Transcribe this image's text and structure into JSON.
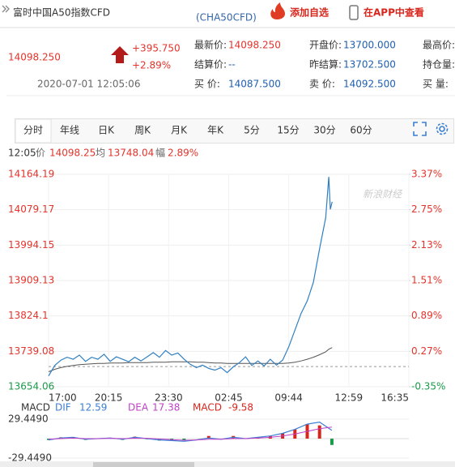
{
  "header": {
    "title": "富时中国A50指数CFD",
    "code": "(CHA50CFD)",
    "add_watch": "添加自选",
    "open_app": "在APP中查看"
  },
  "quote": {
    "price": "14098.250",
    "change": "+395.750",
    "change_pct": "+2.89%",
    "time": "2020-07-01 12:05:06",
    "fields": [
      {
        "label": "最新价:",
        "value": "14098.250",
        "color": "#e4342c"
      },
      {
        "label": "开盘价:",
        "value": "13700.000"
      },
      {
        "label": "最高价:"
      },
      {
        "label": "结算价:",
        "value": "--"
      },
      {
        "label": "昨结算:",
        "value": "13702.500"
      },
      {
        "label": "持仓量:"
      },
      {
        "label": "买 价:",
        "value": "14087.500"
      },
      {
        "label": "卖 价:",
        "value": "14092.500"
      },
      {
        "label": "买 量:"
      }
    ]
  },
  "tabs": {
    "items": [
      "分时",
      "年线",
      "日K",
      "周K",
      "月K",
      "年K",
      "5分",
      "15分",
      "30分",
      "60分"
    ],
    "selected": 0
  },
  "info": {
    "time": "12:05",
    "range_label": "幅",
    "range": "2.89%"
  },
  "watermark": "新浪财经",
  "chart_data": [
    {
      "type": "line",
      "up_color": "#e4342c",
      "down_color": "#1a9a4a",
      "reference": 13702.5,
      "x": [
        0,
        20,
        40,
        60,
        80,
        100,
        120,
        140,
        160,
        180,
        200,
        220,
        240,
        260,
        280,
        300,
        320,
        340,
        360,
        380,
        400,
        420,
        440,
        460,
        480,
        500,
        520,
        540,
        560,
        580,
        600,
        620,
        640,
        660,
        680,
        700,
        720,
        740,
        760,
        780,
        800,
        820,
        840,
        860,
        880,
        900,
        910,
        915,
        921
      ],
      "series": [
        {
          "name": "价",
          "color": "#2f7fc1",
          "values": [
            13680,
            13705,
            13718,
            13725,
            13720,
            13730,
            13715,
            13725,
            13720,
            13732,
            13715,
            13726,
            13720,
            13714,
            13725,
            13716,
            13726,
            13736,
            13725,
            13741,
            13730,
            13735,
            13720,
            13708,
            13700,
            13706,
            13698,
            13694,
            13700,
            13688,
            13702,
            13712,
            13726,
            13705,
            13716,
            13704,
            13720,
            13706,
            13718,
            13750,
            13790,
            13830,
            13860,
            13905,
            13985,
            14060,
            14158,
            14080,
            14098.25
          ]
        },
        {
          "name": "均",
          "color": "#555555",
          "values": [
            13690,
            13696,
            13700,
            13703,
            13705,
            13707,
            13708,
            13709,
            13710,
            13710,
            13711,
            13711,
            13711,
            13712,
            13712,
            13712,
            13712,
            13713,
            13713,
            13713,
            13714,
            13714,
            13714,
            13714,
            13713,
            13713,
            13712,
            13711,
            13711,
            13710,
            13710,
            13710,
            13710,
            13710,
            13710,
            13710,
            13710,
            13710,
            13710,
            13711,
            13713,
            13716,
            13720,
            13725,
            13731,
            13738,
            13744,
            13746,
            13748.04
          ]
        }
      ],
      "xlim": [
        0,
        1170
      ],
      "xticks": [
        {
          "value": 0,
          "label": "17:00"
        },
        {
          "value": 195,
          "label": "20:15"
        },
        {
          "value": 390,
          "label": "23:30"
        },
        {
          "value": 585,
          "label": "02:45"
        },
        {
          "value": 780,
          "label": "09:44"
        },
        {
          "value": 975,
          "label": "12:59"
        },
        {
          "value": 1170,
          "label": "16:35"
        }
      ],
      "ylim": [
        13654.06,
        14164.19
      ],
      "yticks": [
        14164.19,
        14079.17,
        13994.15,
        13909.13,
        13824.1,
        13739.08,
        13654.06
      ],
      "y2lim": [
        -0.35,
        3.37
      ],
      "y2ticks": [
        {
          "value": 3.37,
          "label": "3.37%"
        },
        {
          "value": 2.75,
          "label": "2.75%"
        },
        {
          "value": 2.13,
          "label": "2.13%"
        },
        {
          "value": 1.51,
          "label": "1.51%"
        },
        {
          "value": 0.89,
          "label": "0.89%"
        },
        {
          "value": 0.27,
          "label": "0.27%"
        },
        {
          "value": -0.35,
          "label": "-0.35%"
        }
      ]
    },
    {
      "type": "macd",
      "title": "MACD",
      "up_color": "#d9261c",
      "down_color": "#1a9a4a",
      "x": [
        0,
        40,
        80,
        120,
        160,
        200,
        240,
        280,
        320,
        360,
        400,
        440,
        480,
        520,
        560,
        600,
        640,
        680,
        720,
        760,
        800,
        840,
        880,
        920
      ],
      "series": [
        {
          "name": "DIF",
          "color": "#3a7fd5",
          "values": [
            -2,
            1,
            2,
            -1,
            0,
            1,
            -1,
            2,
            0,
            -2,
            -3,
            -4,
            -2,
            1,
            -1,
            2,
            0,
            2,
            4,
            8,
            14,
            22,
            25,
            12.59
          ]
        },
        {
          "name": "DEA",
          "color": "#c040c8",
          "values": [
            -1,
            0,
            1,
            0,
            0,
            0.5,
            0,
            0.5,
            0.5,
            -0.5,
            -1.5,
            -2.5,
            -2,
            -1,
            -1,
            0,
            0,
            1,
            2,
            4,
            7,
            11,
            15,
            17.38
          ]
        }
      ],
      "bars": {
        "name": "MACD",
        "values": [
          -2,
          2,
          2,
          -2,
          0,
          1,
          -2,
          3,
          -1,
          -3,
          -3,
          -3,
          0,
          4,
          0,
          4,
          0,
          2,
          4,
          8,
          14,
          22,
          20,
          -9.58
        ]
      },
      "xlim": [
        0,
        1170
      ],
      "ylim": [
        -29.449,
        29.449
      ],
      "yticks": [
        {
          "value": 29.449,
          "label": "29.4490"
        },
        {
          "value": -29.449,
          "label": "-29.4490"
        }
      ]
    }
  ]
}
